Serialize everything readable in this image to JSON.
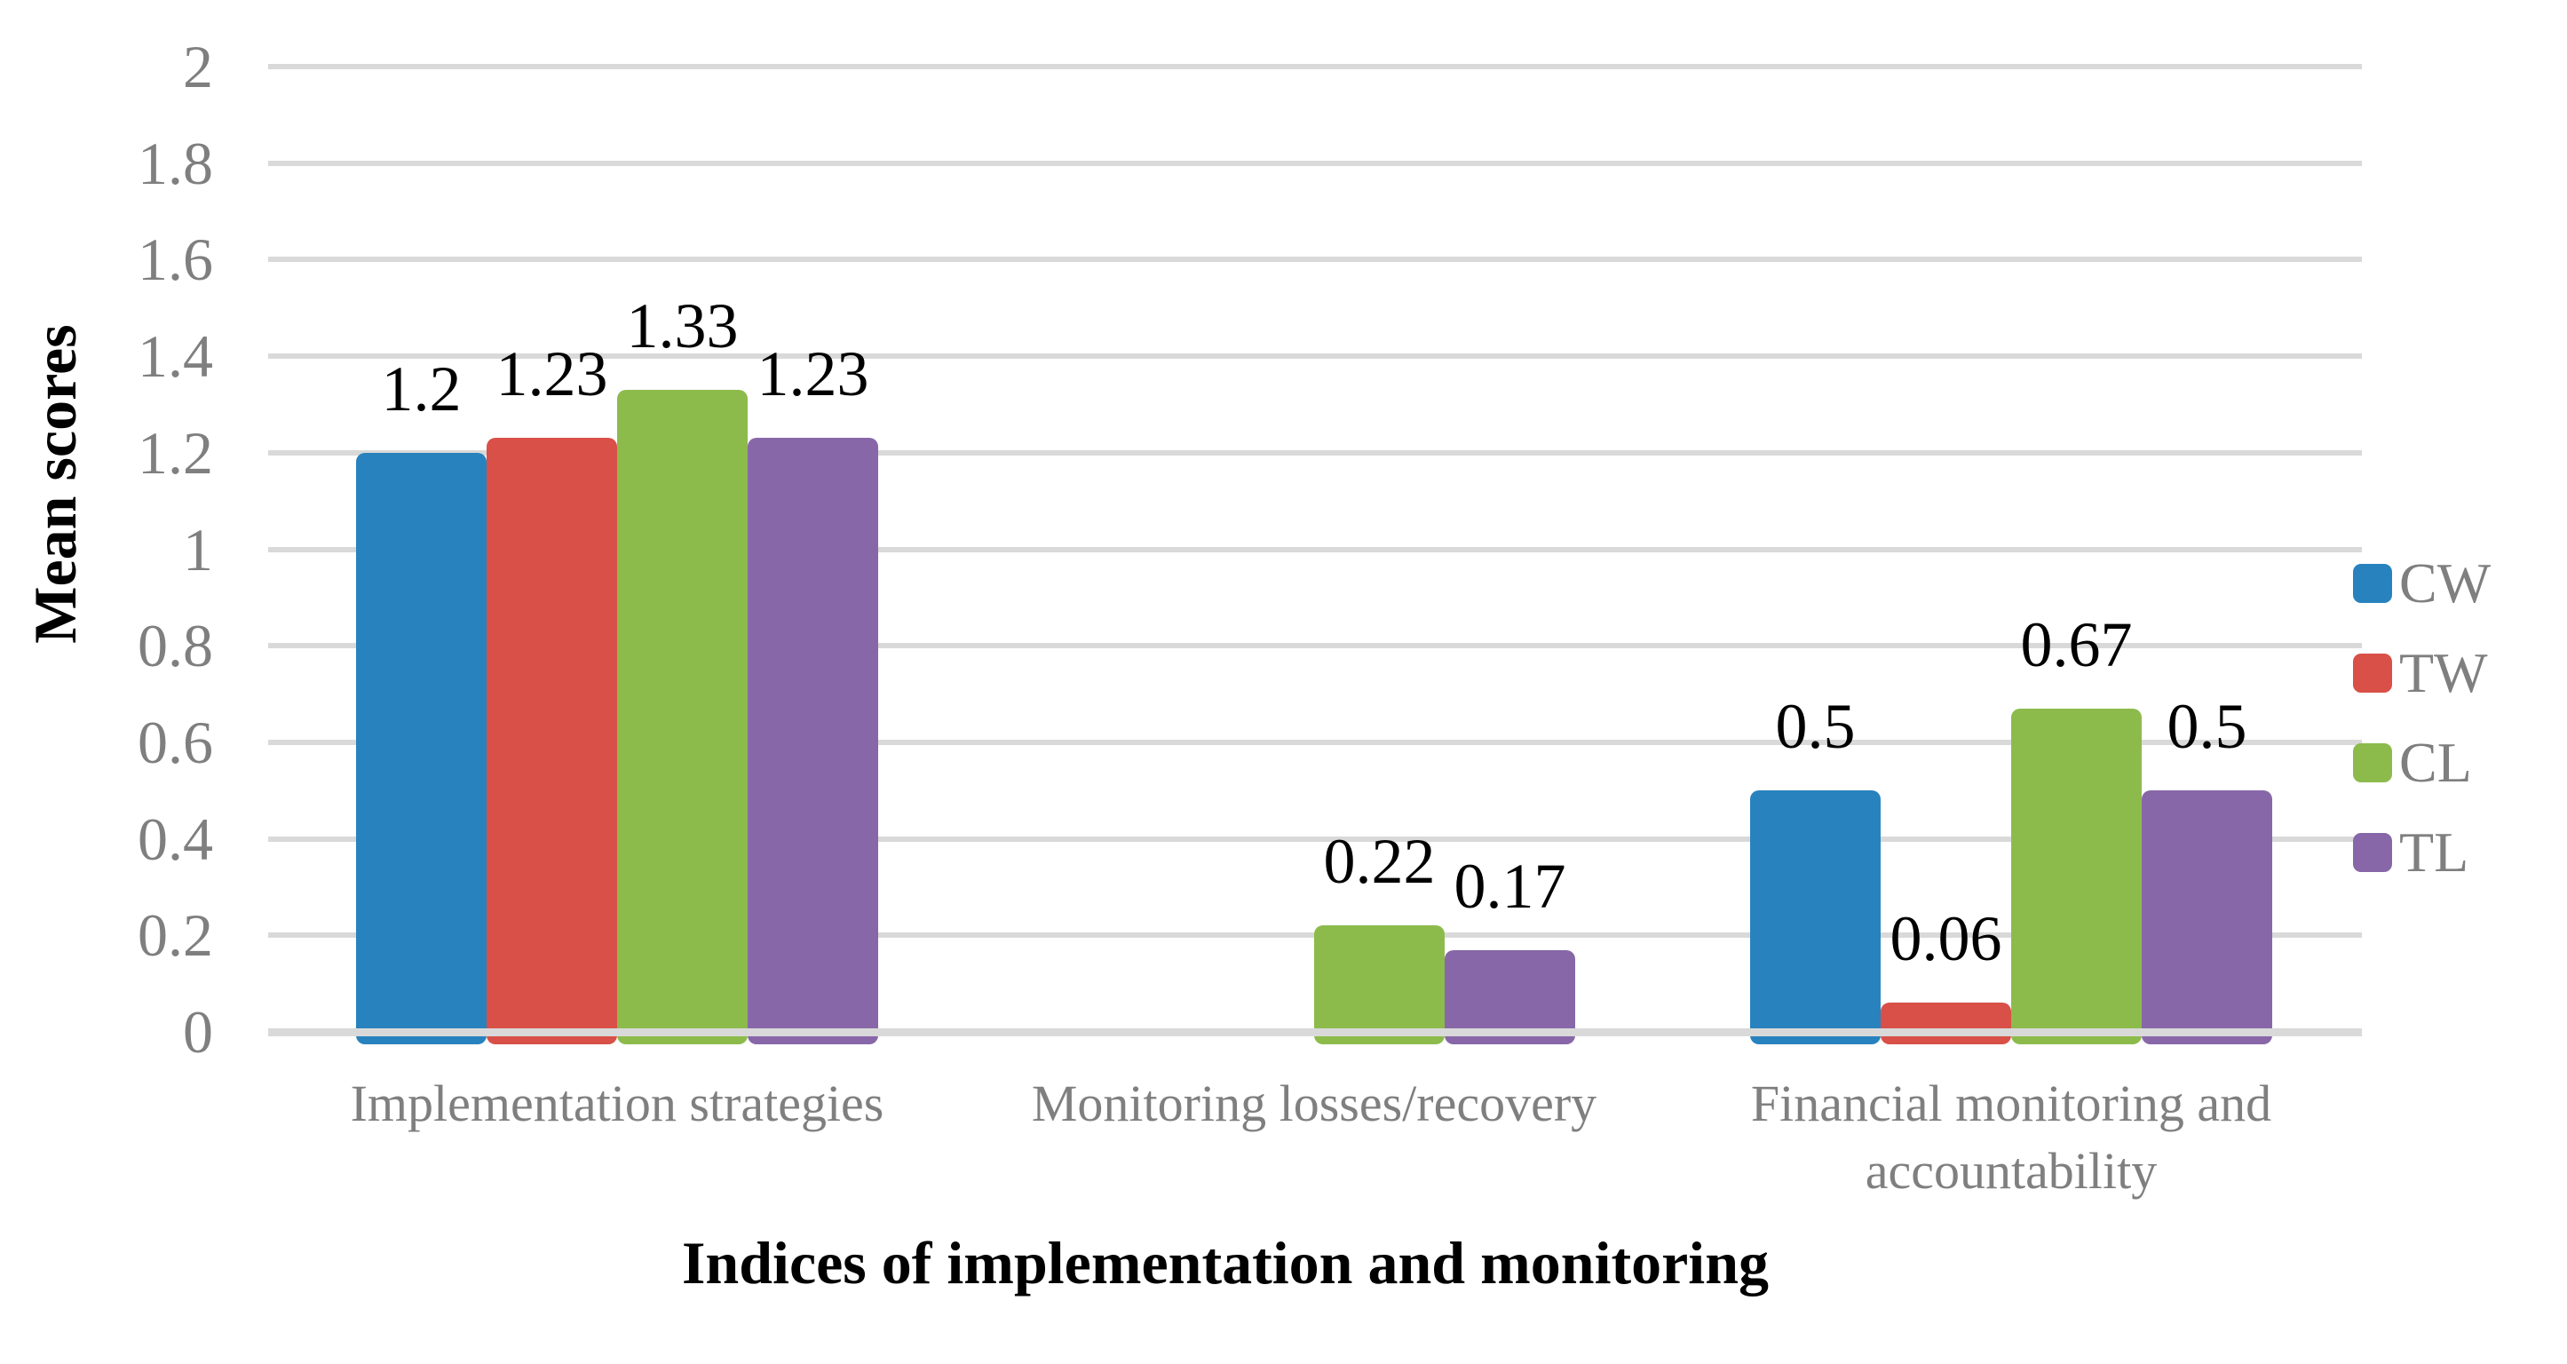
{
  "figure": {
    "background": "#ffffff"
  },
  "chart_data": {
    "type": "bar",
    "title": "",
    "xlabel": "Indices of implementation and monitoring",
    "ylabel": "Mean scores",
    "ylim": [
      0,
      2
    ],
    "ytick_step": 0.2,
    "yticks": [
      "0",
      "0.2",
      "0.4",
      "0.6",
      "0.8",
      "1",
      "1.2",
      "1.4",
      "1.6",
      "1.8",
      "2"
    ],
    "grid": true,
    "legend_position": "right",
    "categories": [
      "Implementation strategies",
      "Monitoring losses/recovery",
      "Financial monitoring and accountability"
    ],
    "series": [
      {
        "name": "CW",
        "color": "#2882BE",
        "values": [
          1.2,
          0,
          0.5
        ],
        "labels": [
          "1.2",
          null,
          "0.5"
        ]
      },
      {
        "name": "TW",
        "color": "#D85047",
        "values": [
          1.23,
          0,
          0.06
        ],
        "labels": [
          "1.23",
          null,
          "0.06"
        ]
      },
      {
        "name": "CL",
        "color": "#8CBB4C",
        "values": [
          1.33,
          0.22,
          0.67
        ],
        "labels": [
          "1.33",
          "0.22",
          "0.67"
        ]
      },
      {
        "name": "TL",
        "color": "#8767A8",
        "values": [
          1.23,
          0.17,
          0.5
        ],
        "labels": [
          "1.23",
          "0.17",
          "0.5"
        ]
      }
    ],
    "colors": {
      "gridline": "#D9D9D9",
      "axis_text": "#7F7F7F",
      "data_label_text": "#000000",
      "title_text": "#000000"
    }
  }
}
